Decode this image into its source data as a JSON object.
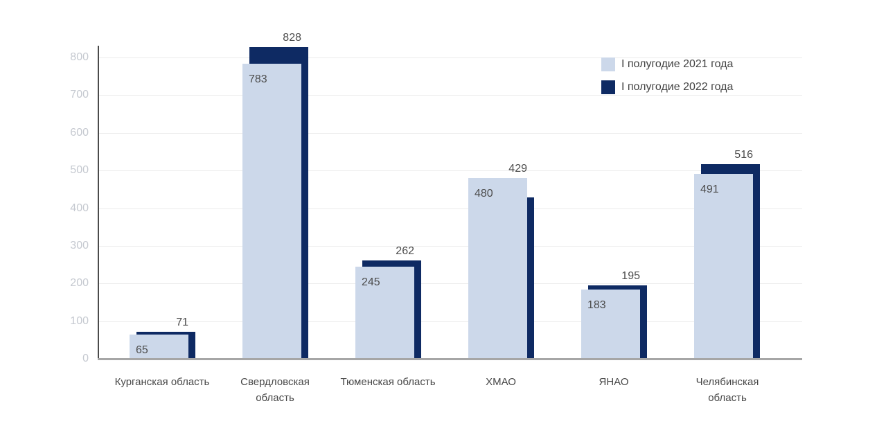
{
  "chart_data": {
    "type": "bar",
    "style": "overlapped-bars-2021-front-2022-behind-offset-right",
    "categories": [
      "Курганская область",
      "Свердловская область",
      "Тюменская область",
      "ХМАО",
      "ЯНАО",
      "Челябинская область"
    ],
    "series": [
      {
        "name": "I полугодие 2021 года",
        "color": "#ccd8ea",
        "values": [
          65,
          783,
          245,
          480,
          183,
          491
        ]
      },
      {
        "name": "I полугодие 2022 года",
        "color": "#0e2a63",
        "values": [
          71,
          828,
          262,
          429,
          195,
          516
        ]
      }
    ],
    "title": "",
    "xlabel": "",
    "ylabel": "",
    "ylim": [
      0,
      800
    ],
    "ytick_step": 100,
    "yticks": [
      0,
      100,
      200,
      300,
      400,
      500,
      600,
      700,
      800
    ],
    "grid": "horizontal",
    "legend_position": "top-right",
    "value_labels": {
      "series_2021_placement": "inside-top-left-of-light-bar",
      "series_2022_placement": "above-bar-right-aligned"
    },
    "colors": {
      "gridline": "#ececec",
      "y_axis_line": "#4a4a4a",
      "baseline": "#a6a6a6",
      "ytick_label": "#c5c9d0",
      "value_label": "#4c4c4c",
      "category_label": "#474747",
      "legend_label": "#424242",
      "background": "#ffffff"
    }
  }
}
